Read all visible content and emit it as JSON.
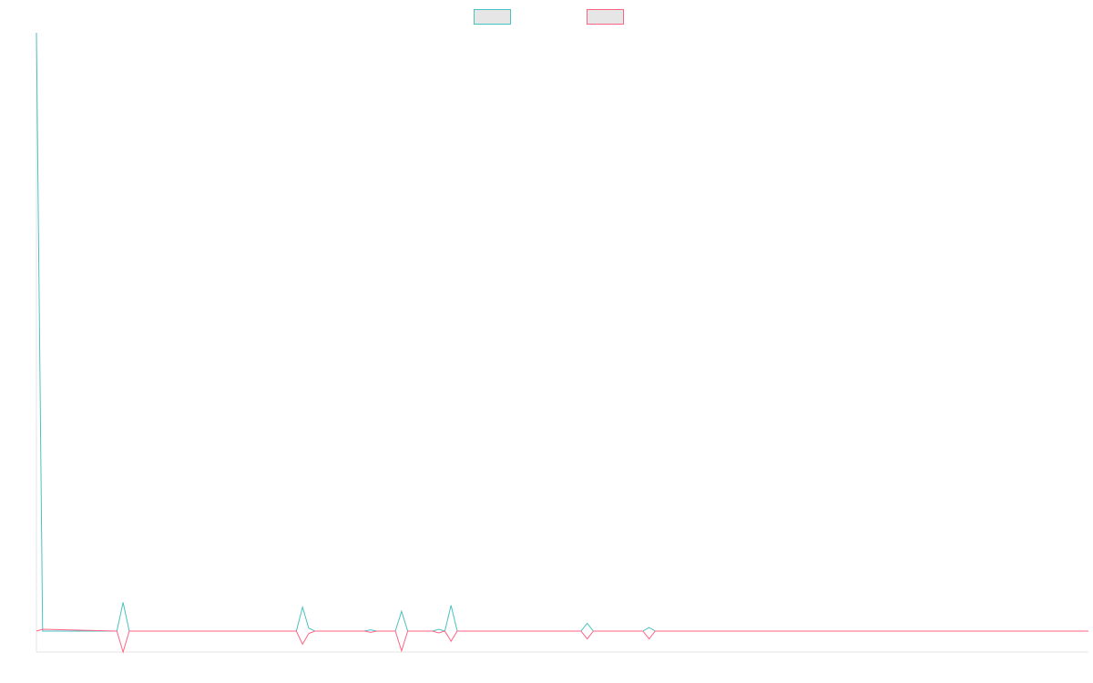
{
  "chart_data": {
    "type": "line",
    "title": "",
    "xlabel": "",
    "ylabel": "",
    "grid": false,
    "legend": {
      "placement": "top-center",
      "entries": [
        "",
        ""
      ]
    },
    "ylim": [
      -0.035,
      1.0
    ],
    "x": [
      0,
      1,
      13,
      14,
      15,
      26,
      42,
      43,
      44,
      45,
      53,
      54,
      55,
      58,
      59,
      60,
      64,
      65,
      66,
      67,
      68,
      69,
      70,
      88,
      89,
      90,
      98,
      99,
      100,
      170
    ],
    "series": [
      {
        "name": "",
        "color": "#4bc0c0",
        "values": [
          1.0,
          0,
          0,
          0.048,
          0,
          0,
          0,
          0.04,
          0.005,
          0,
          0,
          0.002,
          0,
          0,
          0.033,
          0,
          0,
          0.003,
          0,
          0.043,
          0,
          0,
          0,
          0,
          0.013,
          0,
          0,
          0.006,
          0,
          0
        ]
      },
      {
        "name": "",
        "color": "#ff6384",
        "values": [
          0,
          0.003,
          0,
          -0.035,
          0,
          0,
          0,
          -0.022,
          -0.004,
          0,
          0,
          -0.002,
          0,
          0,
          -0.033,
          0,
          0,
          -0.003,
          0,
          -0.017,
          0,
          0,
          0,
          0,
          -0.013,
          0,
          0,
          -0.013,
          0,
          0
        ]
      }
    ]
  }
}
